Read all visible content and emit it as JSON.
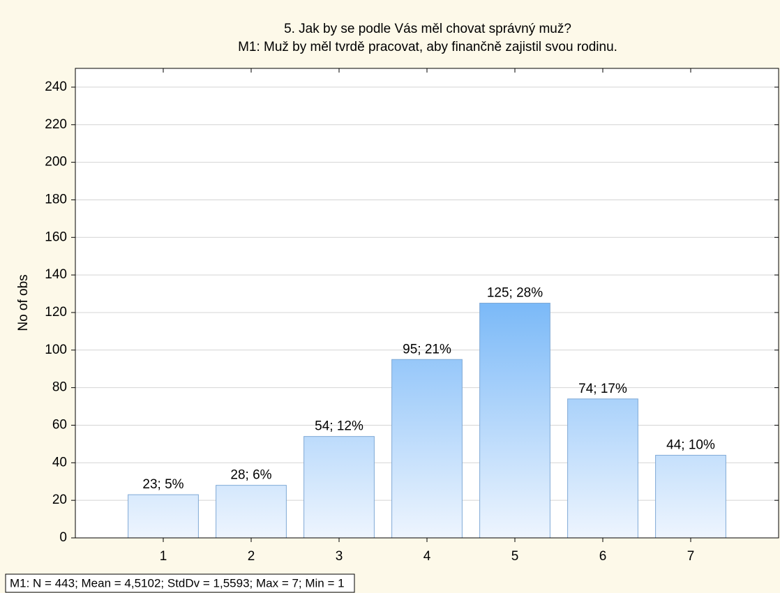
{
  "chart_data": {
    "type": "bar",
    "title": "5. Jak by se podle Vás měl chovat správný muž?",
    "subtitle": "M1: Muž by měl tvrdě pracovat, aby finančně zajistil svou rodinu.",
    "y_label": "No of obs",
    "categories": [
      "1",
      "2",
      "3",
      "4",
      "5",
      "6",
      "7"
    ],
    "values": [
      23,
      28,
      54,
      95,
      125,
      74,
      44
    ],
    "value_labels": [
      "23; 5%",
      "28; 6%",
      "54; 12%",
      "95; 21%",
      "125; 28%",
      "74; 17%",
      "44; 10%"
    ],
    "color": "#6fb3f7",
    "ylim": [
      0,
      250
    ],
    "yticks": [
      0,
      20,
      40,
      60,
      80,
      100,
      120,
      140,
      160,
      180,
      200,
      220,
      240
    ],
    "grid": true,
    "footnote": "M1:   N = 443; Mean = 4,5102; StdDv = 1,5593; Max = 7; Min = 1"
  }
}
